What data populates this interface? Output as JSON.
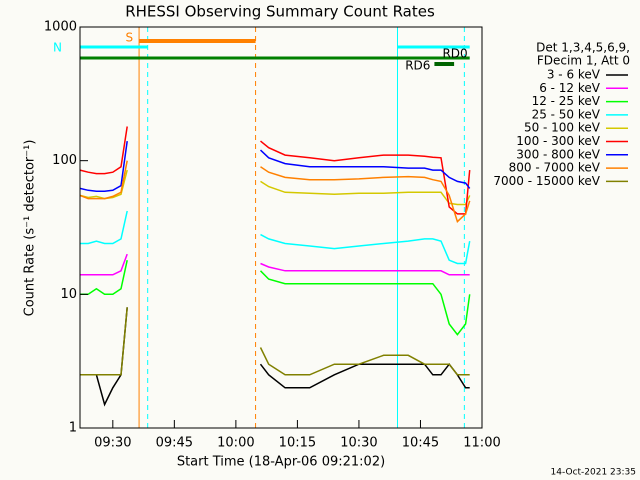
{
  "chart_data": {
    "type": "line",
    "title": "RHESSI Observing Summary Count Rates",
    "x_label": "Start Time (18-Apr-06 09:21:02)",
    "y_label": "Count Rate (s⁻¹ detector⁻¹)",
    "log_y": true,
    "xlim": [
      22,
      120
    ],
    "xticks": [
      {
        "value": 30,
        "label": "09:30"
      },
      {
        "value": 45,
        "label": "09:45"
      },
      {
        "value": 60,
        "label": "10:00"
      },
      {
        "value": 75,
        "label": "10:15"
      },
      {
        "value": 90,
        "label": "10:30"
      },
      {
        "value": 105,
        "label": "10:45"
      },
      {
        "value": 120,
        "label": "11:00"
      }
    ],
    "ylim": [
      1,
      1000
    ],
    "yticks": [
      1,
      10,
      100,
      1000
    ],
    "x": [
      22,
      24,
      26,
      28,
      30,
      32,
      33.5,
      50,
      66,
      68,
      72,
      78,
      84,
      90,
      96,
      102,
      106,
      108,
      110,
      112,
      114,
      116,
      117
    ],
    "legend_header": [
      "Det 1,3,4,5,6,9,",
      "FDecim 1, Att 0"
    ],
    "series": [
      {
        "name": "3 - 6 keV",
        "color": "#000000",
        "values": [
          2.5,
          2.5,
          2.5,
          1.5,
          2,
          2.5,
          8,
          null,
          3,
          2.5,
          2,
          2,
          2.5,
          3,
          3,
          3,
          3,
          2.5,
          2.5,
          3,
          2.5,
          2,
          2
        ]
      },
      {
        "name": "6 - 12 keV",
        "color": "#ff00ff",
        "values": [
          14,
          14,
          14,
          14,
          14,
          15,
          20,
          null,
          17,
          16,
          15,
          15,
          15,
          15,
          15,
          15,
          15,
          15,
          15,
          14,
          14,
          14,
          14
        ]
      },
      {
        "name": "12 - 25 keV",
        "color": "#00ff00",
        "values": [
          10,
          10,
          11,
          10,
          10,
          11,
          18,
          null,
          15,
          13,
          12,
          12,
          12,
          12,
          12,
          12,
          12,
          12,
          10,
          6,
          5,
          6,
          10
        ]
      },
      {
        "name": "25 - 50 keV",
        "color": "#00ffff",
        "values": [
          24,
          24,
          25,
          24,
          24,
          26,
          42,
          null,
          28,
          26,
          24,
          23,
          22,
          23,
          24,
          25,
          26,
          26,
          25,
          18,
          17,
          17,
          25
        ]
      },
      {
        "name": "50 - 100 keV",
        "color": "#d4c800",
        "values": [
          55,
          53,
          54,
          52,
          53,
          56,
          85,
          null,
          70,
          64,
          58,
          57,
          56,
          57,
          57,
          58,
          58,
          58,
          58,
          48,
          47,
          47,
          55
        ]
      },
      {
        "name": "100 - 300 keV",
        "color": "#ff0000",
        "values": [
          85,
          82,
          80,
          80,
          82,
          90,
          180,
          null,
          140,
          125,
          110,
          105,
          100,
          105,
          110,
          110,
          108,
          106,
          105,
          45,
          40,
          40,
          85
        ]
      },
      {
        "name": "300 - 800 keV",
        "color": "#0000ff",
        "values": [
          62,
          60,
          59,
          59,
          60,
          65,
          140,
          null,
          120,
          105,
          95,
          90,
          90,
          90,
          90,
          88,
          88,
          85,
          85,
          75,
          70,
          68,
          62
        ]
      },
      {
        "name": "800 - 7000 keV",
        "color": "#ff8000",
        "values": [
          55,
          52,
          52,
          52,
          54,
          58,
          100,
          null,
          90,
          82,
          75,
          72,
          72,
          73,
          75,
          76,
          75,
          72,
          70,
          55,
          35,
          40,
          50
        ]
      },
      {
        "name": "7000 - 15000 keV",
        "color": "#808000",
        "values": [
          2.5,
          2.5,
          2.5,
          2.5,
          2.5,
          2.5,
          8,
          null,
          4,
          3,
          2.5,
          2.5,
          3,
          3,
          3.5,
          3.5,
          3,
          3,
          3,
          3,
          2.5,
          2.5,
          2.5
        ]
      }
    ],
    "flags": [
      {
        "label": "S",
        "color": "#ff8000",
        "segments": [
          [
            36.4,
            64.8
          ]
        ]
      },
      {
        "label": "N",
        "color": "#00ffff",
        "segments": [
          [
            22,
            38.5
          ],
          [
            99.4,
            117
          ]
        ]
      },
      {
        "label": "RD0",
        "color": "#008000",
        "segments": [
          [
            22,
            117
          ]
        ]
      },
      {
        "label": "RD6",
        "color": "#006400",
        "segments": [
          [
            108.4,
            113.2
          ]
        ]
      }
    ],
    "markers": [
      {
        "x": 22,
        "color": "#00ffff",
        "dashed": false
      },
      {
        "x": 36.4,
        "color": "#ff8000",
        "dashed": false
      },
      {
        "x": 38.5,
        "color": "#00ffff",
        "dashed": true
      },
      {
        "x": 64.8,
        "color": "#ff8000",
        "dashed": true
      },
      {
        "x": 99.4,
        "color": "#00ffff",
        "dashed": false
      },
      {
        "x": 115.7,
        "color": "#00ffff",
        "dashed": true
      }
    ],
    "footer": "14-Oct-2021 23:35"
  }
}
